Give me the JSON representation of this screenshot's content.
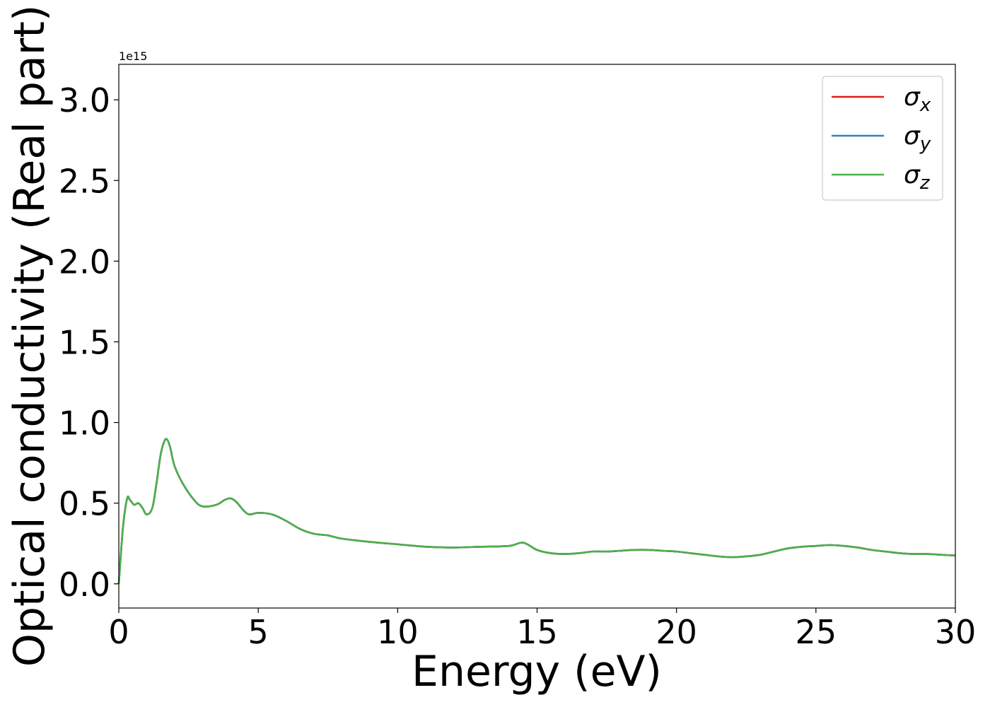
{
  "chart_data": {
    "type": "line",
    "xlabel": "Energy (eV)",
    "ylabel": "Optical conductivity (Real part)",
    "y_offset_label": "1e15",
    "xlim": [
      0,
      30
    ],
    "ylim": [
      -0.15,
      3.22
    ],
    "x_ticks": [
      0,
      5,
      10,
      15,
      20,
      25,
      30
    ],
    "x_tick_labels": [
      "0",
      "5",
      "10",
      "15",
      "20",
      "25",
      "30"
    ],
    "y_ticks": [
      0.0,
      0.5,
      1.0,
      1.5,
      2.0,
      2.5,
      3.0
    ],
    "y_tick_labels": [
      "0.0",
      "0.5",
      "1.0",
      "1.5",
      "2.0",
      "2.5",
      "3.0"
    ],
    "grid": false,
    "legend_position": "top-right",
    "x": [
      0,
      0.15,
      0.3,
      0.4,
      0.55,
      0.7,
      0.85,
      1.0,
      1.2,
      1.35,
      1.5,
      1.65,
      1.75,
      1.85,
      2.0,
      2.3,
      2.7,
      3.0,
      3.5,
      3.8,
      4.0,
      4.2,
      4.5,
      4.7,
      5.0,
      5.5,
      6.0,
      6.5,
      7.0,
      7.5,
      8.0,
      9.0,
      10.0,
      11.0,
      12.0,
      13.0,
      14.0,
      14.5,
      15.0,
      15.5,
      16.0,
      16.5,
      17.0,
      17.5,
      18.0,
      18.5,
      19.0,
      19.5,
      20.0,
      20.5,
      21.0,
      21.5,
      22.0,
      22.5,
      23.0,
      23.5,
      24.0,
      24.5,
      25.0,
      25.5,
      26.0,
      26.5,
      27.0,
      27.5,
      28.0,
      28.5,
      29.0,
      29.5,
      30.0
    ],
    "series": [
      {
        "name": "σx",
        "color": "#e41a1c",
        "values": [
          0.0,
          0.35,
          0.53,
          0.52,
          0.49,
          0.5,
          0.47,
          0.43,
          0.47,
          0.62,
          0.8,
          0.89,
          0.89,
          0.84,
          0.73,
          0.62,
          0.52,
          0.48,
          0.49,
          0.52,
          0.53,
          0.51,
          0.45,
          0.43,
          0.44,
          0.43,
          0.39,
          0.34,
          0.31,
          0.3,
          0.28,
          0.26,
          0.245,
          0.23,
          0.225,
          0.23,
          0.235,
          0.255,
          0.21,
          0.19,
          0.185,
          0.19,
          0.2,
          0.2,
          0.205,
          0.21,
          0.21,
          0.205,
          0.2,
          0.19,
          0.18,
          0.17,
          0.165,
          0.17,
          0.18,
          0.2,
          0.22,
          0.23,
          0.235,
          0.24,
          0.235,
          0.225,
          0.21,
          0.2,
          0.19,
          0.185,
          0.185,
          0.18,
          0.175
        ]
      },
      {
        "name": "σy",
        "color": "#377eb8",
        "values": [
          0.0,
          0.35,
          0.53,
          0.52,
          0.49,
          0.5,
          0.47,
          0.43,
          0.47,
          0.62,
          0.8,
          0.89,
          0.89,
          0.84,
          0.73,
          0.62,
          0.52,
          0.48,
          0.49,
          0.52,
          0.53,
          0.51,
          0.45,
          0.43,
          0.44,
          0.43,
          0.39,
          0.34,
          0.31,
          0.3,
          0.28,
          0.26,
          0.245,
          0.23,
          0.225,
          0.23,
          0.235,
          0.255,
          0.21,
          0.19,
          0.185,
          0.19,
          0.2,
          0.2,
          0.205,
          0.21,
          0.21,
          0.205,
          0.2,
          0.19,
          0.18,
          0.17,
          0.165,
          0.17,
          0.18,
          0.2,
          0.22,
          0.23,
          0.235,
          0.24,
          0.235,
          0.225,
          0.21,
          0.2,
          0.19,
          0.185,
          0.185,
          0.18,
          0.175
        ]
      },
      {
        "name": "σz",
        "color": "#4daf4a",
        "values": [
          0.0,
          0.35,
          0.53,
          0.52,
          0.49,
          0.5,
          0.47,
          0.43,
          0.47,
          0.62,
          0.8,
          0.89,
          0.89,
          0.84,
          0.73,
          0.62,
          0.52,
          0.48,
          0.49,
          0.52,
          0.53,
          0.51,
          0.45,
          0.43,
          0.44,
          0.43,
          0.39,
          0.34,
          0.31,
          0.3,
          0.28,
          0.26,
          0.245,
          0.23,
          0.225,
          0.23,
          0.235,
          0.255,
          0.21,
          0.19,
          0.185,
          0.19,
          0.2,
          0.2,
          0.205,
          0.21,
          0.21,
          0.205,
          0.2,
          0.19,
          0.18,
          0.17,
          0.165,
          0.17,
          0.18,
          0.2,
          0.22,
          0.23,
          0.235,
          0.24,
          0.235,
          0.225,
          0.21,
          0.2,
          0.19,
          0.185,
          0.185,
          0.18,
          0.175
        ]
      }
    ],
    "legend": [
      {
        "symbol": "σ",
        "subscript": "x",
        "color": "#e41a1c"
      },
      {
        "symbol": "σ",
        "subscript": "y",
        "color": "#377eb8"
      },
      {
        "symbol": "σ",
        "subscript": "z",
        "color": "#4daf4a"
      }
    ]
  }
}
